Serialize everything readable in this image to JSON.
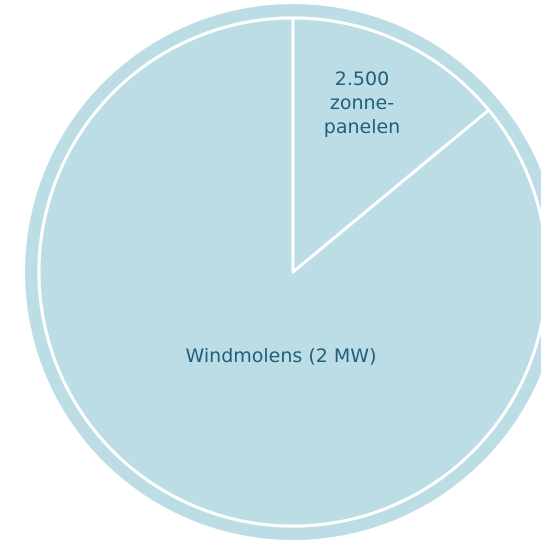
{
  "chart_data": {
    "type": "pie",
    "title": "",
    "slices": [
      {
        "label": "2.500 zonne-panelen",
        "label_lines": [
          "2.500",
          "zonne-",
          "panelen"
        ],
        "value": 14
      },
      {
        "label": "Windmolens (2 MW)",
        "label_lines": [
          "Windmolens (2 MW)"
        ],
        "value": 86
      }
    ],
    "colors": {
      "slice_fill": "#bcdde6",
      "outline": "#ffffff",
      "label_text": "#1f5f7a"
    },
    "legend": "none"
  }
}
